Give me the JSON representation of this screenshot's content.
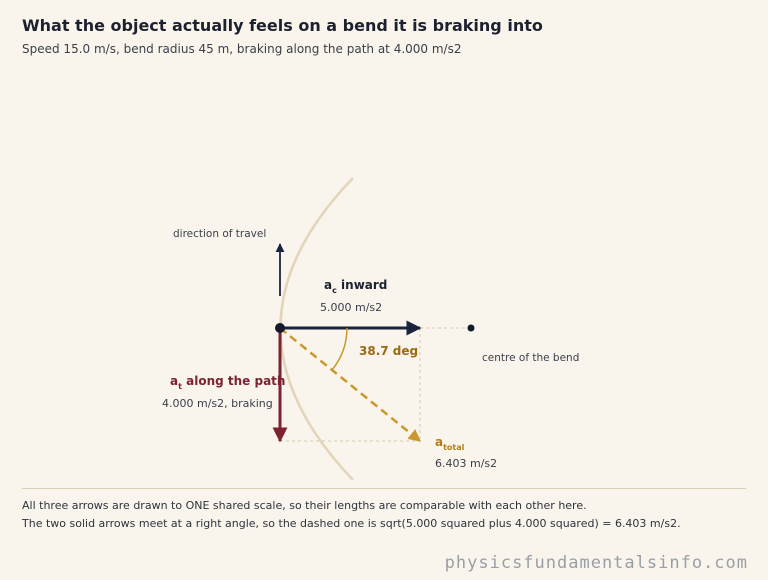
{
  "title": "What the object actually feels on a bend it is braking into",
  "subtitle": "Speed 15.0 m/s, bend radius 45 m, braking along the path at 4.000 m/s2",
  "labels": {
    "travel": "direction of travel",
    "centre": "centre of the bend",
    "angle": "38.7 deg",
    "ac_main": "a",
    "ac_sub": "c",
    "ac_rest": " inward",
    "ac_value": "5.000 m/s2",
    "at_main": "a",
    "at_sub": "t",
    "at_rest": " along the path",
    "at_value": "4.000 m/s2, braking",
    "atot_main": "a",
    "atot_sub": "total",
    "atot_value": "6.403 m/s2"
  },
  "notes": {
    "line1": "All three arrows are drawn to ONE shared scale, so their lengths are comparable with each other here.",
    "line2": "The two solid arrows meet at a right angle, so the dashed one is sqrt(5.000 squared plus 4.000 squared) = 6.403 m/s2."
  },
  "watermark": "physicsfundamentalsinfo.com",
  "colors": {
    "background": "#f9f5ec",
    "centripetal": "#1c2340",
    "tangential": "#7b2330",
    "total": "#c9972c",
    "path": "#e3d5b9"
  }
}
